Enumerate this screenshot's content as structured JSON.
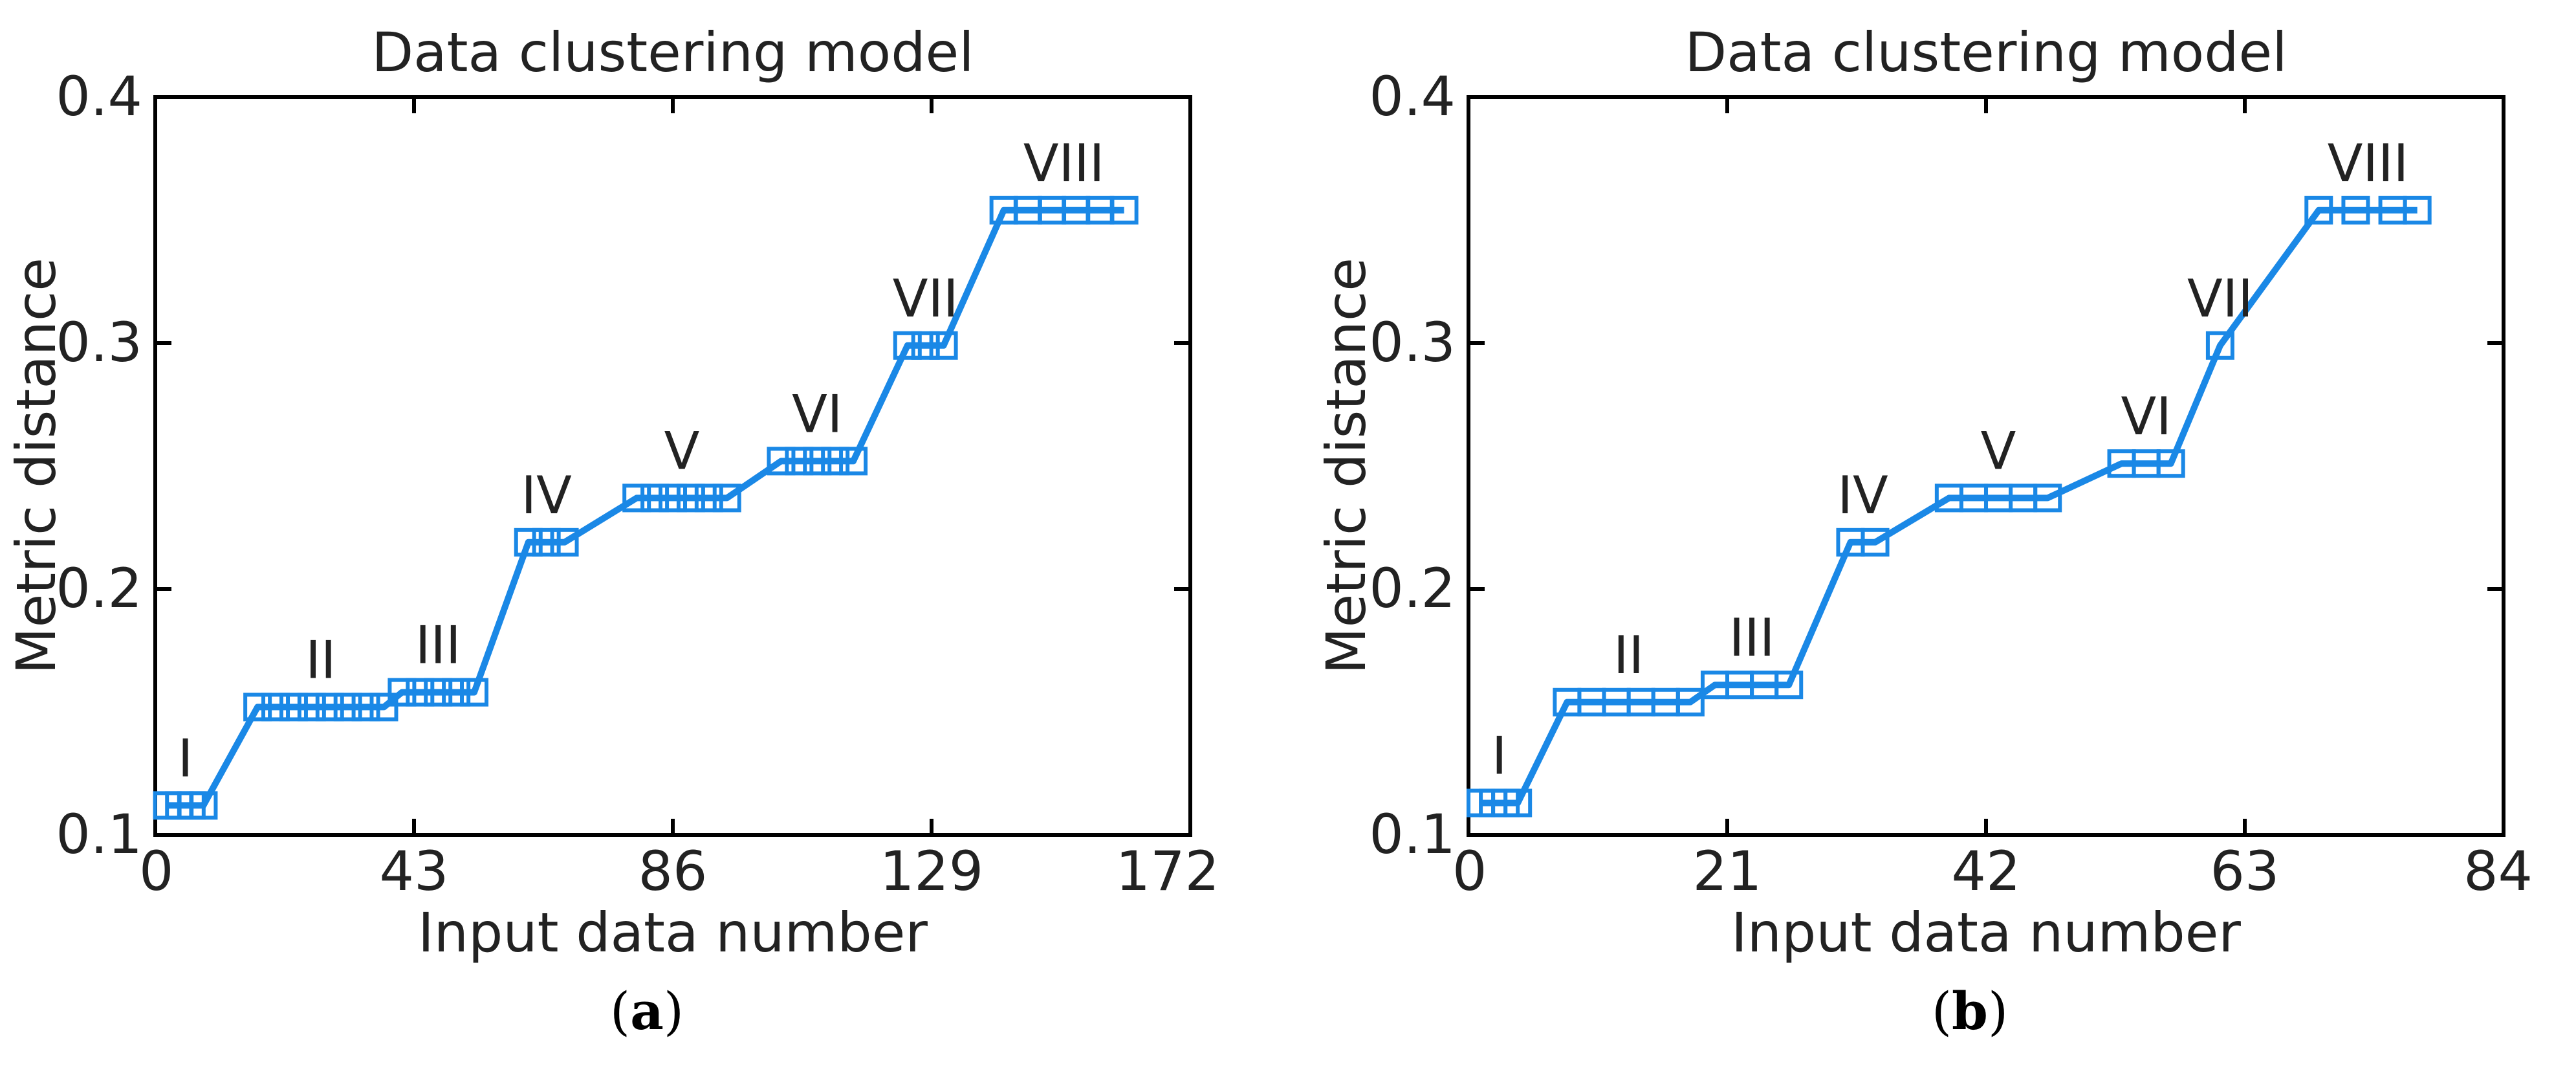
{
  "chart_data": [
    {
      "type": "line",
      "panel_label": "a",
      "title": "Data clustering model",
      "xlabel": "Input data number",
      "ylabel": "Metric distance",
      "xlim": [
        0,
        172
      ],
      "ylim": [
        0.1,
        0.4
      ],
      "xticks": [
        "0",
        "43",
        "86",
        "129",
        "172"
      ],
      "yticks": [
        "0.1",
        "0.2",
        "0.3",
        "0.4"
      ],
      "grid": false,
      "marker": "square",
      "color": "#1a88e6",
      "clusters": [
        {
          "label": "I",
          "x": [
            2,
            4,
            6,
            8
          ],
          "y": 0.112
        },
        {
          "label": "II",
          "x": [
            17,
            20,
            23,
            26,
            29,
            32,
            35,
            38
          ],
          "y": 0.152
        },
        {
          "label": "III",
          "x": [
            41,
            44,
            47,
            50,
            53
          ],
          "y": 0.158
        },
        {
          "label": "IV",
          "x": [
            62,
            65,
            68
          ],
          "y": 0.219
        },
        {
          "label": "V",
          "x": [
            80,
            83,
            86,
            89,
            92,
            95
          ],
          "y": 0.237
        },
        {
          "label": "VI",
          "x": [
            104,
            107,
            110,
            113,
            116
          ],
          "y": 0.252
        },
        {
          "label": "VII",
          "x": [
            125,
            128,
            131
          ],
          "y": 0.299
        },
        {
          "label": "VIII",
          "x": [
            141,
            145,
            149,
            153,
            157,
            161
          ],
          "y": 0.354
        }
      ]
    },
    {
      "type": "line",
      "panel_label": "b",
      "title": "Data clustering model",
      "xlabel": "Input data number",
      "ylabel": "Metric distance",
      "xlim": [
        0,
        84
      ],
      "ylim": [
        0.1,
        0.4
      ],
      "xticks": [
        "0",
        "21",
        "42",
        "63",
        "84"
      ],
      "yticks": [
        "0.1",
        "0.2",
        "0.3",
        "0.4"
      ],
      "grid": false,
      "marker": "square",
      "color": "#1a88e6",
      "clusters": [
        {
          "label": "I",
          "x": [
            1,
            2,
            3,
            4
          ],
          "y": 0.113
        },
        {
          "label": "II",
          "x": [
            8,
            10,
            12,
            14,
            16,
            18
          ],
          "y": 0.154
        },
        {
          "label": "III",
          "x": [
            20,
            22,
            24,
            26
          ],
          "y": 0.161
        },
        {
          "label": "IV",
          "x": [
            31,
            33
          ],
          "y": 0.219
        },
        {
          "label": "V",
          "x": [
            39,
            41,
            43,
            45,
            47
          ],
          "y": 0.237
        },
        {
          "label": "VI",
          "x": [
            53,
            55,
            57
          ],
          "y": 0.251
        },
        {
          "label": "VII",
          "x": [
            61
          ],
          "y": 0.299
        },
        {
          "label": "VIII",
          "x": [
            69,
            72,
            75,
            77
          ],
          "y": 0.354
        }
      ]
    }
  ]
}
